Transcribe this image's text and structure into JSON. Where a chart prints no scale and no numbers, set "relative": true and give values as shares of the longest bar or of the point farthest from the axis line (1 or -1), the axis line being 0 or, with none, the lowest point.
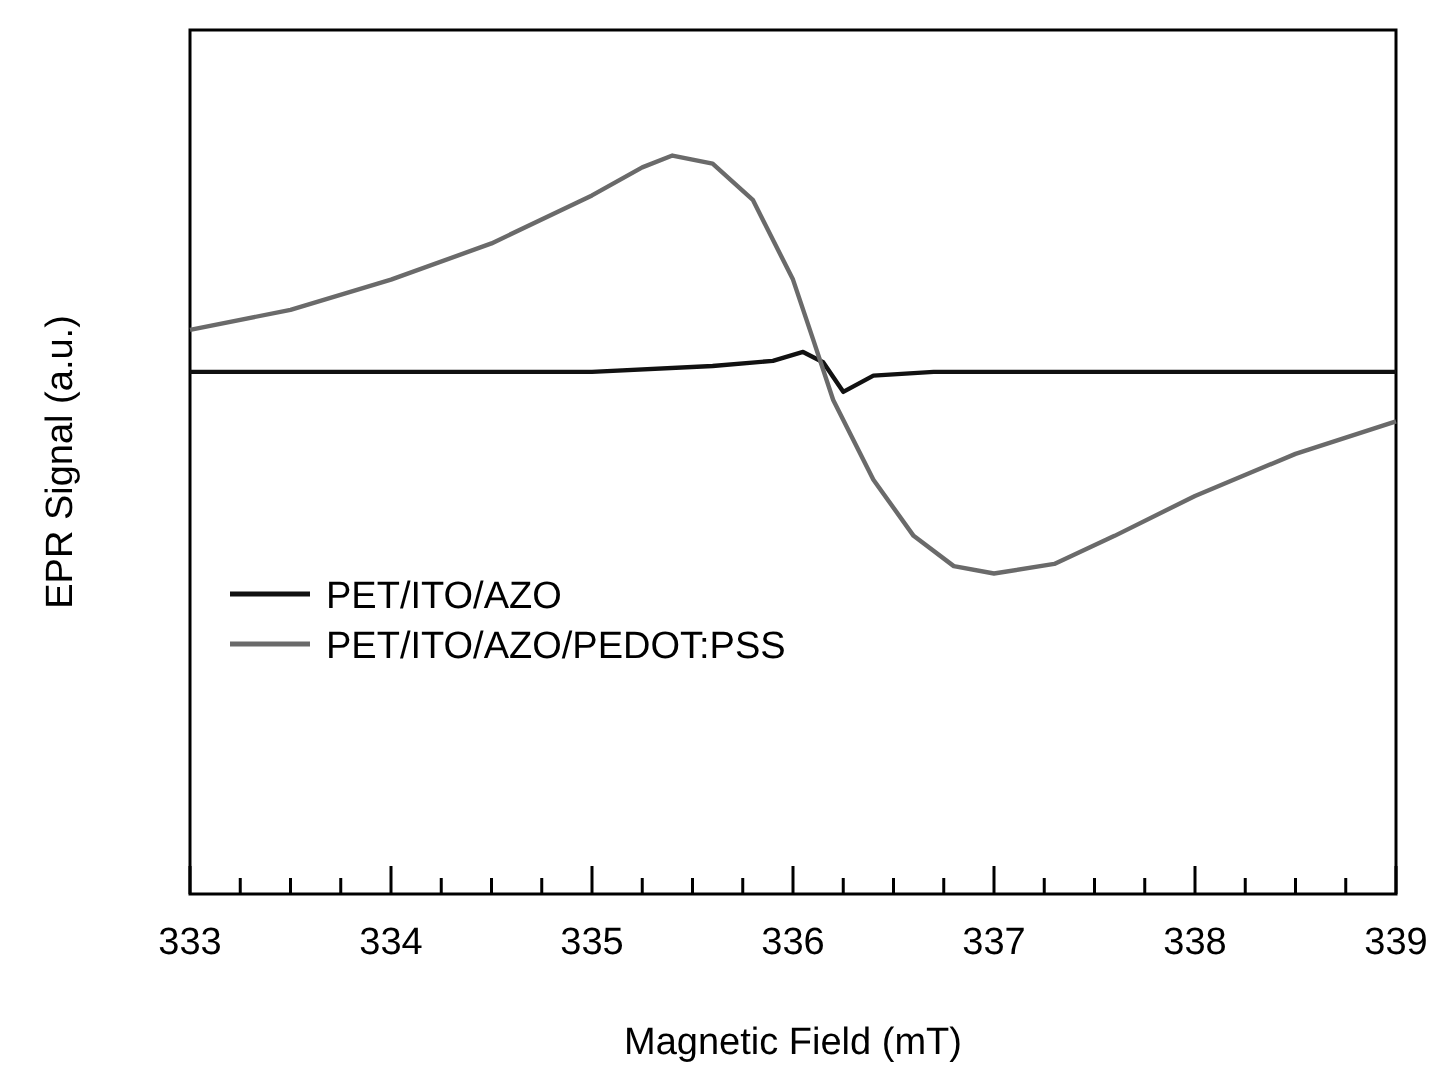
{
  "chart_data": {
    "type": "line",
    "xlabel": "Magnetic Field (mT)",
    "ylabel": "EPR Signal (a.u.)",
    "relative": true,
    "xlim": [
      333,
      339
    ],
    "xticks": [
      333,
      {
        "value": 333.25,
        "label": null
      },
      {
        "value": 333.5,
        "label": null
      },
      {
        "value": 333.75,
        "label": null
      },
      334,
      {
        "value": 334.25,
        "label": null
      },
      {
        "value": 334.5,
        "label": null
      },
      {
        "value": 334.75,
        "label": null
      },
      335,
      {
        "value": 335.25,
        "label": null
      },
      {
        "value": 335.5,
        "label": null
      },
      {
        "value": 335.75,
        "label": null
      },
      336,
      {
        "value": 336.25,
        "label": null
      },
      {
        "value": 336.5,
        "label": null
      },
      {
        "value": 336.75,
        "label": null
      },
      337,
      {
        "value": 337.25,
        "label": null
      },
      {
        "value": 337.5,
        "label": null
      },
      {
        "value": 337.75,
        "label": null
      },
      338,
      {
        "value": 338.25,
        "label": null
      },
      {
        "value": 338.5,
        "label": null
      },
      {
        "value": 338.75,
        "label": null
      },
      339
    ],
    "legend": "bottom left",
    "grid": false,
    "tick_labels": "x",
    "series": [
      {
        "name": "PET/ITO/AZO",
        "color": "#111111",
        "x": [
          333,
          334,
          335,
          335.6,
          335.9,
          336.05,
          336.15,
          336.25,
          336.4,
          336.7,
          337.5,
          339
        ],
        "values": [
          0.707,
          0.707,
          0.707,
          0.715,
          0.722,
          0.734,
          0.72,
          0.68,
          0.702,
          0.707,
          0.707,
          0.707
        ]
      },
      {
        "name": "PET/ITO/AZO/PEDOT:PSS",
        "color": "#6a6a6a",
        "x": [
          333,
          333.5,
          334,
          334.5,
          335,
          335.25,
          335.4,
          335.6,
          335.8,
          336,
          336.1,
          336.2,
          336.4,
          336.6,
          336.8,
          337,
          337.3,
          337.6,
          338,
          338.5,
          339
        ],
        "values": [
          0.764,
          0.791,
          0.832,
          0.881,
          0.946,
          0.984,
          1,
          0.989,
          0.94,
          0.832,
          0.751,
          0.669,
          0.561,
          0.485,
          0.444,
          0.434,
          0.447,
          0.485,
          0.539,
          0.596,
          0.64
        ]
      }
    ]
  }
}
